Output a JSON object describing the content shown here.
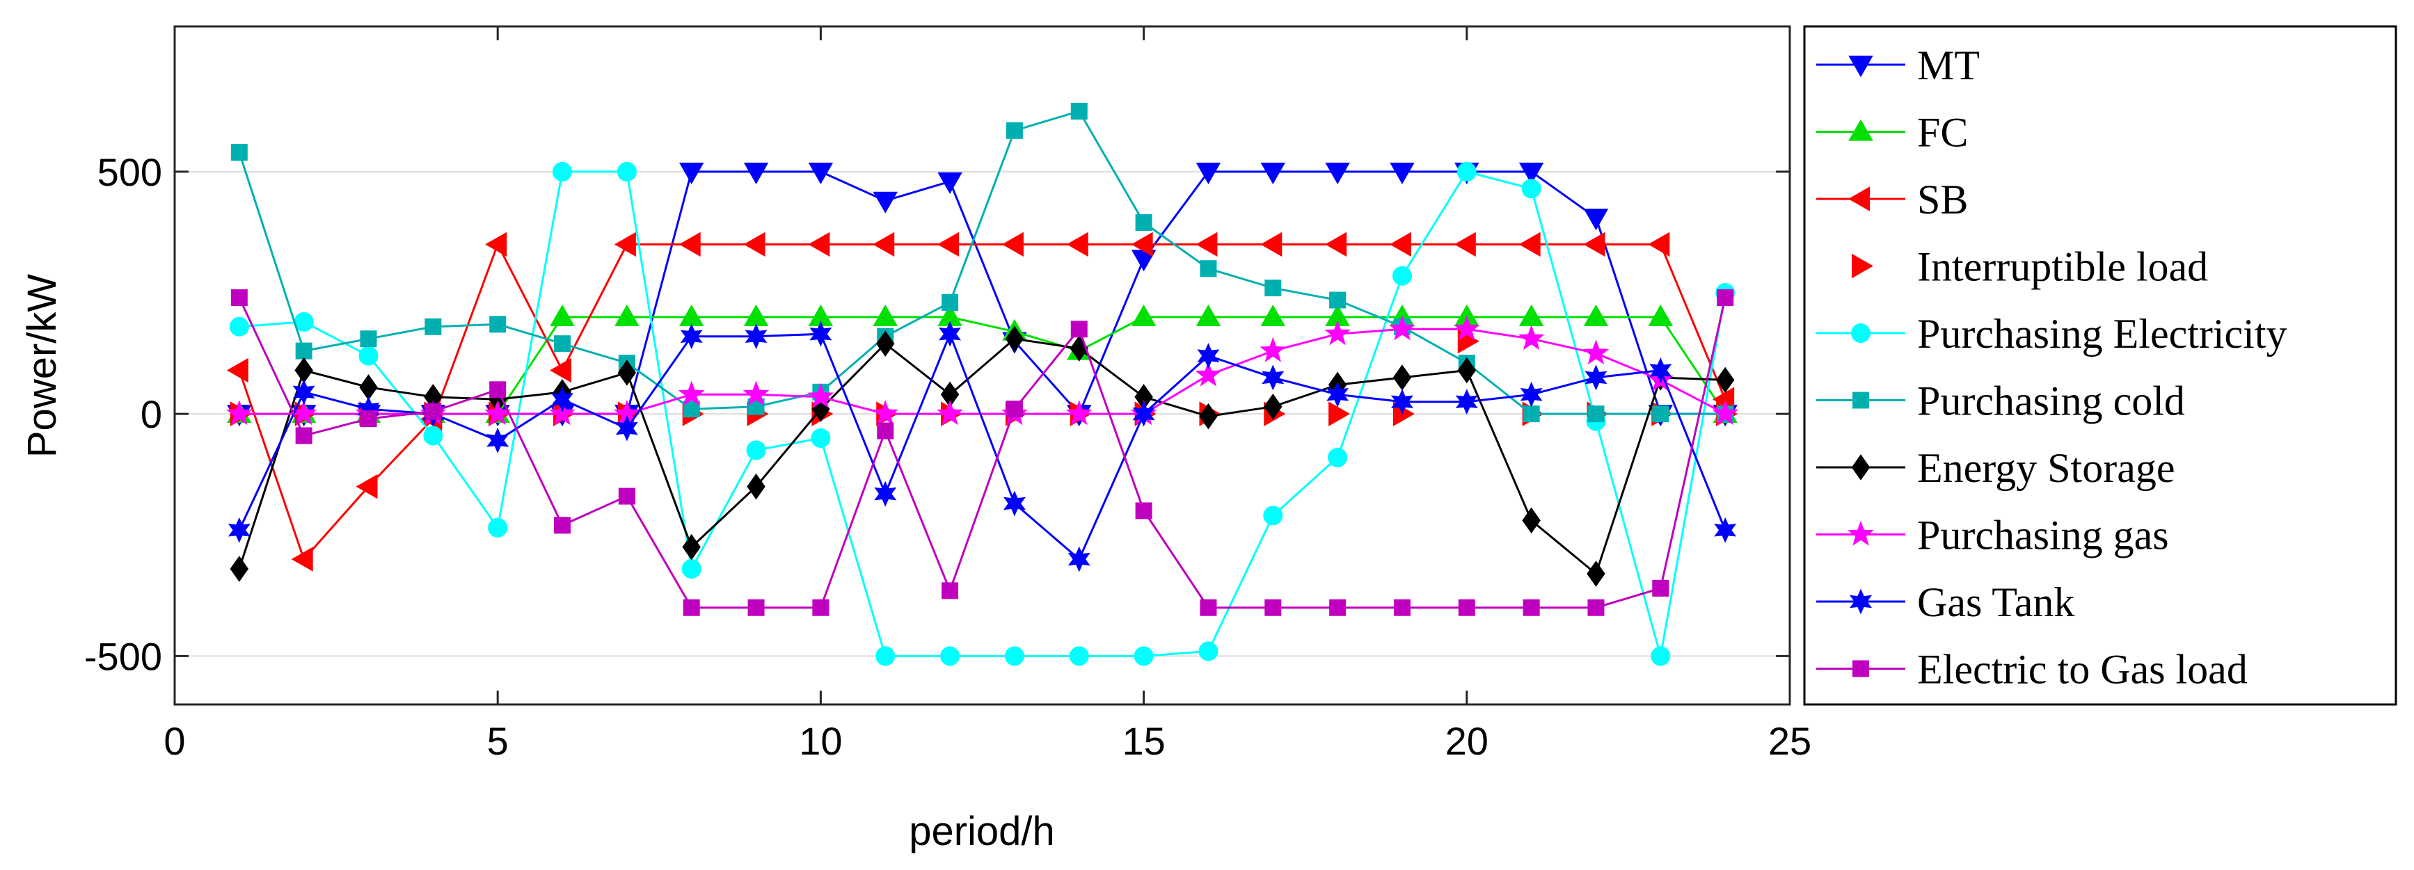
{
  "chart_data": {
    "type": "line",
    "title": "",
    "xlabel": "period/h",
    "ylabel": "Power/kW",
    "xlim": [
      0,
      25
    ],
    "ylim": [
      -600,
      800
    ],
    "xticks": [
      0,
      5,
      10,
      15,
      20,
      25
    ],
    "yticks": [
      -500,
      0,
      500
    ],
    "grid": "y-major",
    "legend_position": "outside-right",
    "x": [
      1,
      2,
      3,
      4,
      5,
      6,
      7,
      8,
      9,
      10,
      11,
      12,
      13,
      14,
      15,
      16,
      17,
      18,
      19,
      20,
      21,
      22,
      23,
      24
    ],
    "series": [
      {
        "name": "MT",
        "color": "#0000ff",
        "marker": "triangle-down",
        "values": [
          0,
          0,
          0,
          0,
          0,
          0,
          0,
          500,
          500,
          500,
          440,
          480,
          150,
          0,
          320,
          500,
          500,
          500,
          500,
          500,
          500,
          405,
          0,
          0
        ]
      },
      {
        "name": "FC",
        "color": "#00e000",
        "marker": "triangle-up",
        "values": [
          0,
          0,
          0,
          0,
          0,
          200,
          200,
          200,
          200,
          200,
          200,
          200,
          170,
          130,
          200,
          200,
          200,
          200,
          200,
          200,
          200,
          200,
          200,
          0
        ]
      },
      {
        "name": "SB",
        "color": "#ff0000",
        "marker": "triangle-left",
        "values": [
          90,
          -300,
          -150,
          -10,
          350,
          90,
          350,
          350,
          350,
          350,
          350,
          350,
          350,
          350,
          350,
          350,
          350,
          350,
          350,
          350,
          350,
          350,
          350,
          30
        ]
      },
      {
        "name": "Interruptible load",
        "color": "#ff0000",
        "marker": "triangle-right",
        "line": false,
        "values": [
          0,
          0,
          0,
          0,
          0,
          0,
          0,
          0,
          0,
          0,
          0,
          0,
          0,
          0,
          0,
          0,
          0,
          0,
          0,
          150,
          0,
          0,
          0,
          0
        ]
      },
      {
        "name": "Purchasing Electricity",
        "color": "#00ffff",
        "marker": "circle",
        "values": [
          180,
          190,
          120,
          -45,
          -235,
          500,
          500,
          -320,
          -75,
          -50,
          -500,
          -500,
          -500,
          -500,
          -500,
          -490,
          -210,
          -90,
          285,
          500,
          465,
          -15,
          -500,
          250
        ]
      },
      {
        "name": "Purchasing cold",
        "color": "#00b0b0",
        "marker": "square",
        "values": [
          540,
          130,
          155,
          180,
          185,
          145,
          105,
          10,
          15,
          45,
          160,
          230,
          585,
          625,
          395,
          300,
          260,
          235,
          180,
          105,
          0,
          0,
          0,
          0
        ]
      },
      {
        "name": "Energy Storage",
        "color": "#000000",
        "marker": "diamond",
        "values": [
          -320,
          90,
          55,
          35,
          30,
          45,
          85,
          -275,
          -150,
          10,
          145,
          40,
          155,
          135,
          35,
          -5,
          15,
          60,
          75,
          90,
          -220,
          -330,
          75,
          70
        ]
      },
      {
        "name": "Purchasing gas",
        "color": "#ff00ff",
        "marker": "star",
        "values": [
          0,
          0,
          0,
          0,
          0,
          0,
          0,
          40,
          40,
          35,
          0,
          0,
          0,
          0,
          0,
          80,
          130,
          165,
          175,
          175,
          155,
          125,
          70,
          0
        ]
      },
      {
        "name": "Gas Tank",
        "color": "#0000ff",
        "marker": "hexagram",
        "values": [
          -240,
          45,
          10,
          0,
          -55,
          30,
          -30,
          160,
          160,
          165,
          -165,
          165,
          -185,
          -300,
          0,
          120,
          75,
          40,
          25,
          25,
          40,
          75,
          90,
          -240
        ]
      },
      {
        "name": "Electric to Gas load",
        "color": "#bf00bf",
        "marker": "square",
        "values": [
          240,
          -45,
          -10,
          5,
          50,
          -230,
          -170,
          -400,
          -400,
          -400,
          -35,
          -365,
          10,
          175,
          -200,
          -400,
          -400,
          -400,
          -400,
          -400,
          -400,
          -400,
          -360,
          240
        ]
      }
    ]
  }
}
